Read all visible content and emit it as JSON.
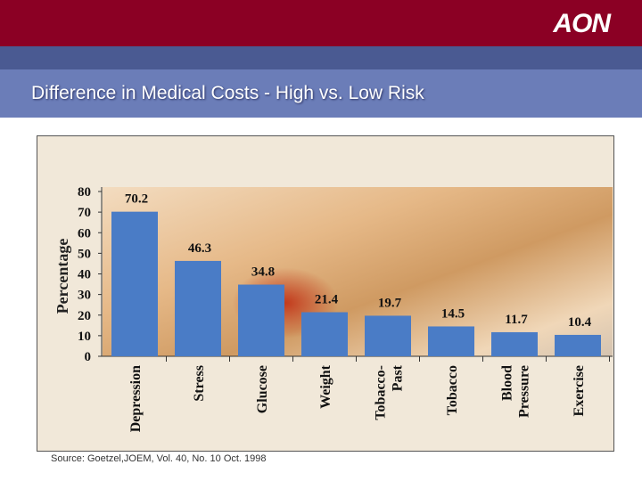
{
  "header": {
    "logo_text": "AON",
    "title": "Difference in Medical Costs - High vs. Low Risk"
  },
  "colors": {
    "top_bar": "#8b0024",
    "title_bar": "#6b7db8",
    "bar": "#4a7cc6"
  },
  "source": "Source: Goetzel,JOEM, Vol. 40, No. 10 Oct. 1998",
  "chart_data": {
    "type": "bar",
    "title": "",
    "xlabel": "",
    "ylabel": "Percentage",
    "ylim": [
      0,
      80
    ],
    "yticks": [
      "0",
      "10",
      "20",
      "30",
      "40",
      "50",
      "60",
      "70",
      "80"
    ],
    "categories": [
      [
        "Depression"
      ],
      [
        "Stress"
      ],
      [
        "Glucose"
      ],
      [
        "Weight"
      ],
      [
        "Tobacco-",
        "Past"
      ],
      [
        "Tobacco"
      ],
      [
        "Blood",
        "Pressure"
      ],
      [
        "Exercise"
      ]
    ],
    "values": [
      70.2,
      46.3,
      34.8,
      21.4,
      19.7,
      14.5,
      11.7,
      10.4
    ],
    "value_labels": [
      "70.2",
      "46.3",
      "34.8",
      "21.4",
      "19.7",
      "14.5",
      "11.7",
      "10.4"
    ],
    "grid": false,
    "legend": "none"
  }
}
